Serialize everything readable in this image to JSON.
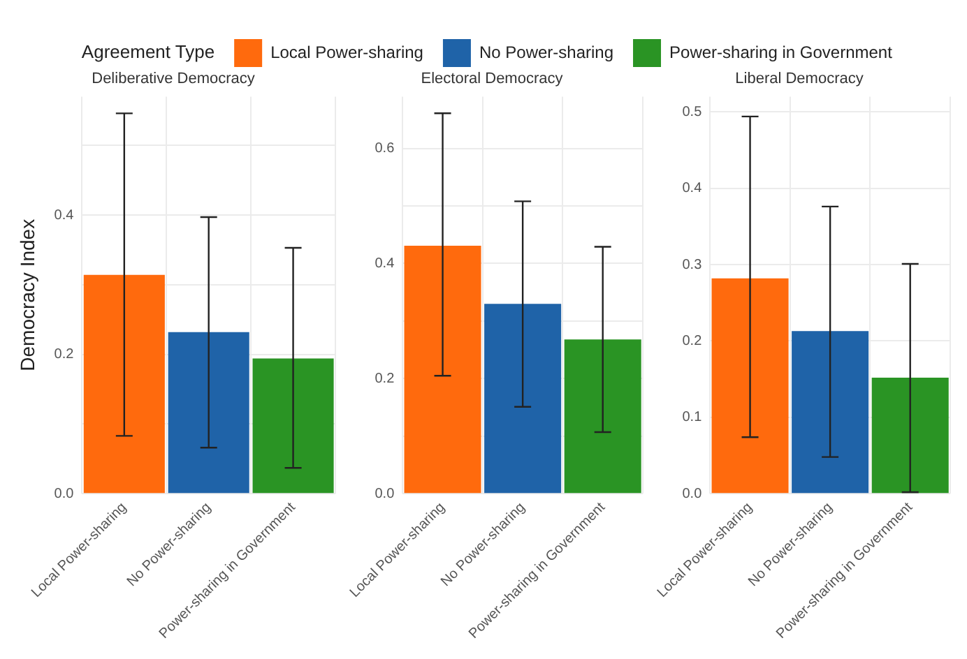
{
  "chart_data": [
    {
      "type": "bar",
      "title": "Deliberative Democracy",
      "ylabel": "Democracy Index",
      "legend_title": "Agreement Type",
      "legend": "top",
      "grid": true,
      "categories": [
        "Local Power-sharing",
        "No Power-sharing",
        "Power-sharing in Government"
      ],
      "series": [
        {
          "name": "Local Power-sharing",
          "color": "#ff6a0d",
          "values": [
            0.314,
            null,
            null
          ],
          "errors": [
            [
              0.083,
              0.546
            ],
            null,
            null
          ]
        },
        {
          "name": "No Power-sharing",
          "color": "#1f63a8",
          "values": [
            null,
            0.232,
            null
          ],
          "errors": [
            null,
            [
              0.066,
              0.397
            ],
            null
          ]
        },
        {
          "name": "Power-sharing in Government",
          "color": "#2a9424",
          "values": [
            null,
            null,
            0.194
          ],
          "errors": [
            null,
            null,
            [
              0.037,
              0.353
            ]
          ]
        }
      ],
      "ylim": [
        0,
        0.57
      ],
      "yticks": [
        {
          "value": 0,
          "label": "0.0"
        },
        {
          "value": 0.1,
          "label": null
        },
        0.2,
        {
          "value": 0.3,
          "label": null
        },
        0.4,
        {
          "value": 0.5,
          "label": null
        }
      ]
    },
    {
      "type": "bar",
      "title": "Electoral Democracy",
      "grid": true,
      "categories": [
        "Local Power-sharing",
        "No Power-sharing",
        "Power-sharing in Government"
      ],
      "series": [
        {
          "color": "#ff6a0d",
          "values": [
            0.431,
            null,
            null
          ],
          "errors": [
            [
              0.205,
              0.661
            ],
            null,
            null
          ]
        },
        {
          "color": "#1f63a8",
          "values": [
            null,
            0.33,
            null
          ],
          "errors": [
            null,
            [
              0.151,
              0.508
            ],
            null
          ]
        },
        {
          "color": "#2a9424",
          "values": [
            null,
            null,
            0.268
          ],
          "errors": [
            null,
            null,
            [
              0.107,
              0.429
            ]
          ]
        }
      ],
      "ylim": [
        0,
        0.69
      ],
      "yticks": [
        {
          "value": 0,
          "label": "0.0"
        },
        {
          "value": 0.1,
          "label": null
        },
        0.2,
        {
          "value": 0.3,
          "label": null
        },
        0.4,
        {
          "value": 0.5,
          "label": null
        },
        0.6
      ]
    },
    {
      "type": "bar",
      "title": "Liberal Democracy",
      "grid": true,
      "categories": [
        "Local Power-sharing",
        "No Power-sharing",
        "Power-sharing in Government"
      ],
      "series": [
        {
          "color": "#ff6a0d",
          "values": [
            0.282,
            null,
            null
          ],
          "errors": [
            [
              0.074,
              0.494
            ],
            null,
            null
          ]
        },
        {
          "color": "#1f63a8",
          "values": [
            null,
            0.213,
            null
          ],
          "errors": [
            null,
            [
              0.048,
              0.376
            ],
            null
          ]
        },
        {
          "color": "#2a9424",
          "values": [
            null,
            null,
            0.152
          ],
          "errors": [
            null,
            null,
            [
              0.002,
              0.301
            ]
          ]
        }
      ],
      "ylim": [
        0,
        0.52
      ],
      "yticks": [
        {
          "value": 0,
          "label": "0.0"
        },
        0.1,
        0.2,
        0.3,
        0.4,
        0.5
      ]
    }
  ]
}
